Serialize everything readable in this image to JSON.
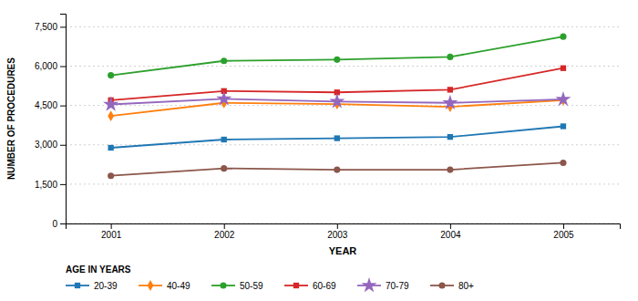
{
  "chart_data": {
    "type": "line",
    "xlabel": "YEAR",
    "ylabel": "NUMBER OF PROCEDURES",
    "legend_title": "AGE IN YEARS",
    "x": [
      2001,
      2002,
      2003,
      2004,
      2005
    ],
    "series": [
      {
        "name": "20-39",
        "marker": "square",
        "values": [
          2887,
          3200,
          3250,
          3300,
          3705
        ]
      },
      {
        "name": "40-49",
        "marker": "diamond",
        "values": [
          4099,
          4600,
          4550,
          4450,
          4702
        ]
      },
      {
        "name": "50-59",
        "marker": "circle",
        "values": [
          5649,
          6200,
          6250,
          6350,
          7126
        ]
      },
      {
        "name": "60-69",
        "marker": "square",
        "values": [
          4702,
          5050,
          5000,
          5100,
          5923
        ]
      },
      {
        "name": "70-79",
        "marker": "star",
        "values": [
          4539,
          4750,
          4650,
          4600,
          4734
        ]
      },
      {
        "name": "80+",
        "marker": "circle",
        "values": [
          1819,
          2100,
          2050,
          2050,
          2315
        ]
      }
    ],
    "xlim": [
      2000.6,
      2005.5
    ],
    "xticks": [
      2001,
      2002,
      2003,
      2004,
      2005
    ],
    "ylim": [
      0,
      8000
    ],
    "yticks": [
      0,
      {
        "value": 1500,
        "label": "1,500"
      },
      {
        "value": 3000,
        "label": "3,000"
      },
      {
        "value": 4500,
        "label": "4,500"
      },
      {
        "value": 6000,
        "label": "6,000"
      },
      {
        "value": 7500,
        "label": "7,500"
      }
    ],
    "grid": true,
    "legend": "bottom"
  }
}
